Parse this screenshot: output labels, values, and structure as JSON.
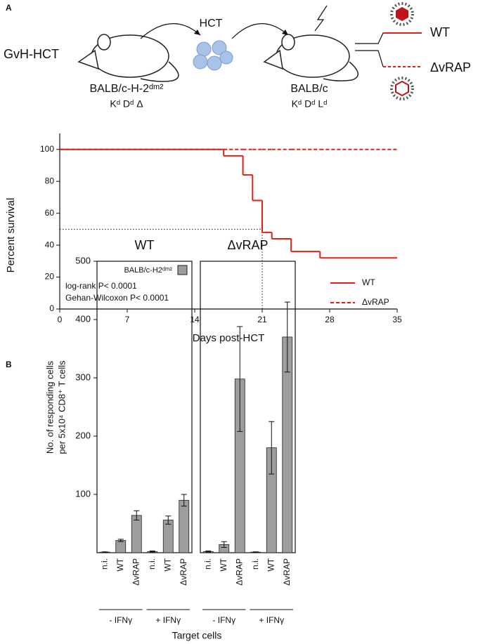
{
  "panel_labels": [
    "A",
    "B"
  ],
  "schematic": {
    "model": "GvH-HCT",
    "transfer": "HCT",
    "donor": [
      "BALB/c-H-2ᵈᵐ²",
      "Kᵈ Dᵈ Δ"
    ],
    "recipient": [
      "BALB/c",
      "Kᵈ Dᵈ Lᵈ"
    ],
    "viruses": [
      "WT",
      "ΔvRAP"
    ]
  },
  "chart_data": [
    {
      "type": "step",
      "x_label": "Days post-HCT",
      "y_label": "Percent survival",
      "x": [
        0,
        17,
        19,
        20,
        21,
        22,
        24,
        27,
        35
      ],
      "series": [
        {
          "name": "WT",
          "color": "#e32119",
          "line_style": "solid",
          "values": [
            100,
            96,
            84,
            68,
            48,
            44,
            36,
            32,
            32
          ]
        },
        {
          "name": "ΔvRAP",
          "color": "#e32119",
          "line_style": "dashed",
          "values": [
            100,
            100,
            100,
            100,
            100,
            100,
            100,
            100,
            100
          ]
        }
      ],
      "median_survival": {
        "x": 21,
        "y": 50
      },
      "annotations": [
        "log-rank P< 0.0001",
        "Gehan-Wilcoxon P< 0.0001"
      ],
      "xlim": [
        0,
        35
      ],
      "xticks": [
        0,
        7,
        14,
        21,
        28,
        35
      ],
      "ylim": [
        0,
        110
      ],
      "yticks": [
        0,
        20,
        40,
        60,
        80,
        100
      ],
      "legend": "lower right"
    },
    {
      "type": "bar",
      "title": "WT",
      "x_label": "Target cells",
      "y_label": [
        "No. of responding cells",
        "per 5x10⁴ CD8⁺ T cells"
      ],
      "categories": [
        "n.i.",
        "WT",
        "ΔvRAP",
        "n.i.",
        "WT",
        "ΔvRAP"
      ],
      "groups": [
        "- IFNγ",
        "+ IFNγ"
      ],
      "series": [
        {
          "name": "BALB/c-H2ᵈᵐ²",
          "color": "#9d9d9d",
          "values": [
            1,
            21,
            64,
            2,
            56,
            90
          ],
          "errors": [
            0.5,
            2,
            8,
            1,
            7,
            10
          ]
        }
      ],
      "ylim": [
        0,
        500
      ],
      "yticks": [
        100,
        200,
        300,
        400,
        500
      ],
      "legend": "upper right"
    },
    {
      "type": "bar",
      "title": "ΔvRAP",
      "categories": [
        "n.i.",
        "WT",
        "ΔvRAP",
        "n.i.",
        "WT",
        "ΔvRAP"
      ],
      "groups": [
        "- IFNγ",
        "+ IFNγ"
      ],
      "series": [
        {
          "color": "#9d9d9d",
          "values": [
            2,
            14,
            298,
            1,
            180,
            370
          ],
          "errors": [
            1,
            5,
            90,
            0.5,
            45,
            60
          ]
        }
      ],
      "ylim": [
        0,
        500
      ]
    }
  ]
}
